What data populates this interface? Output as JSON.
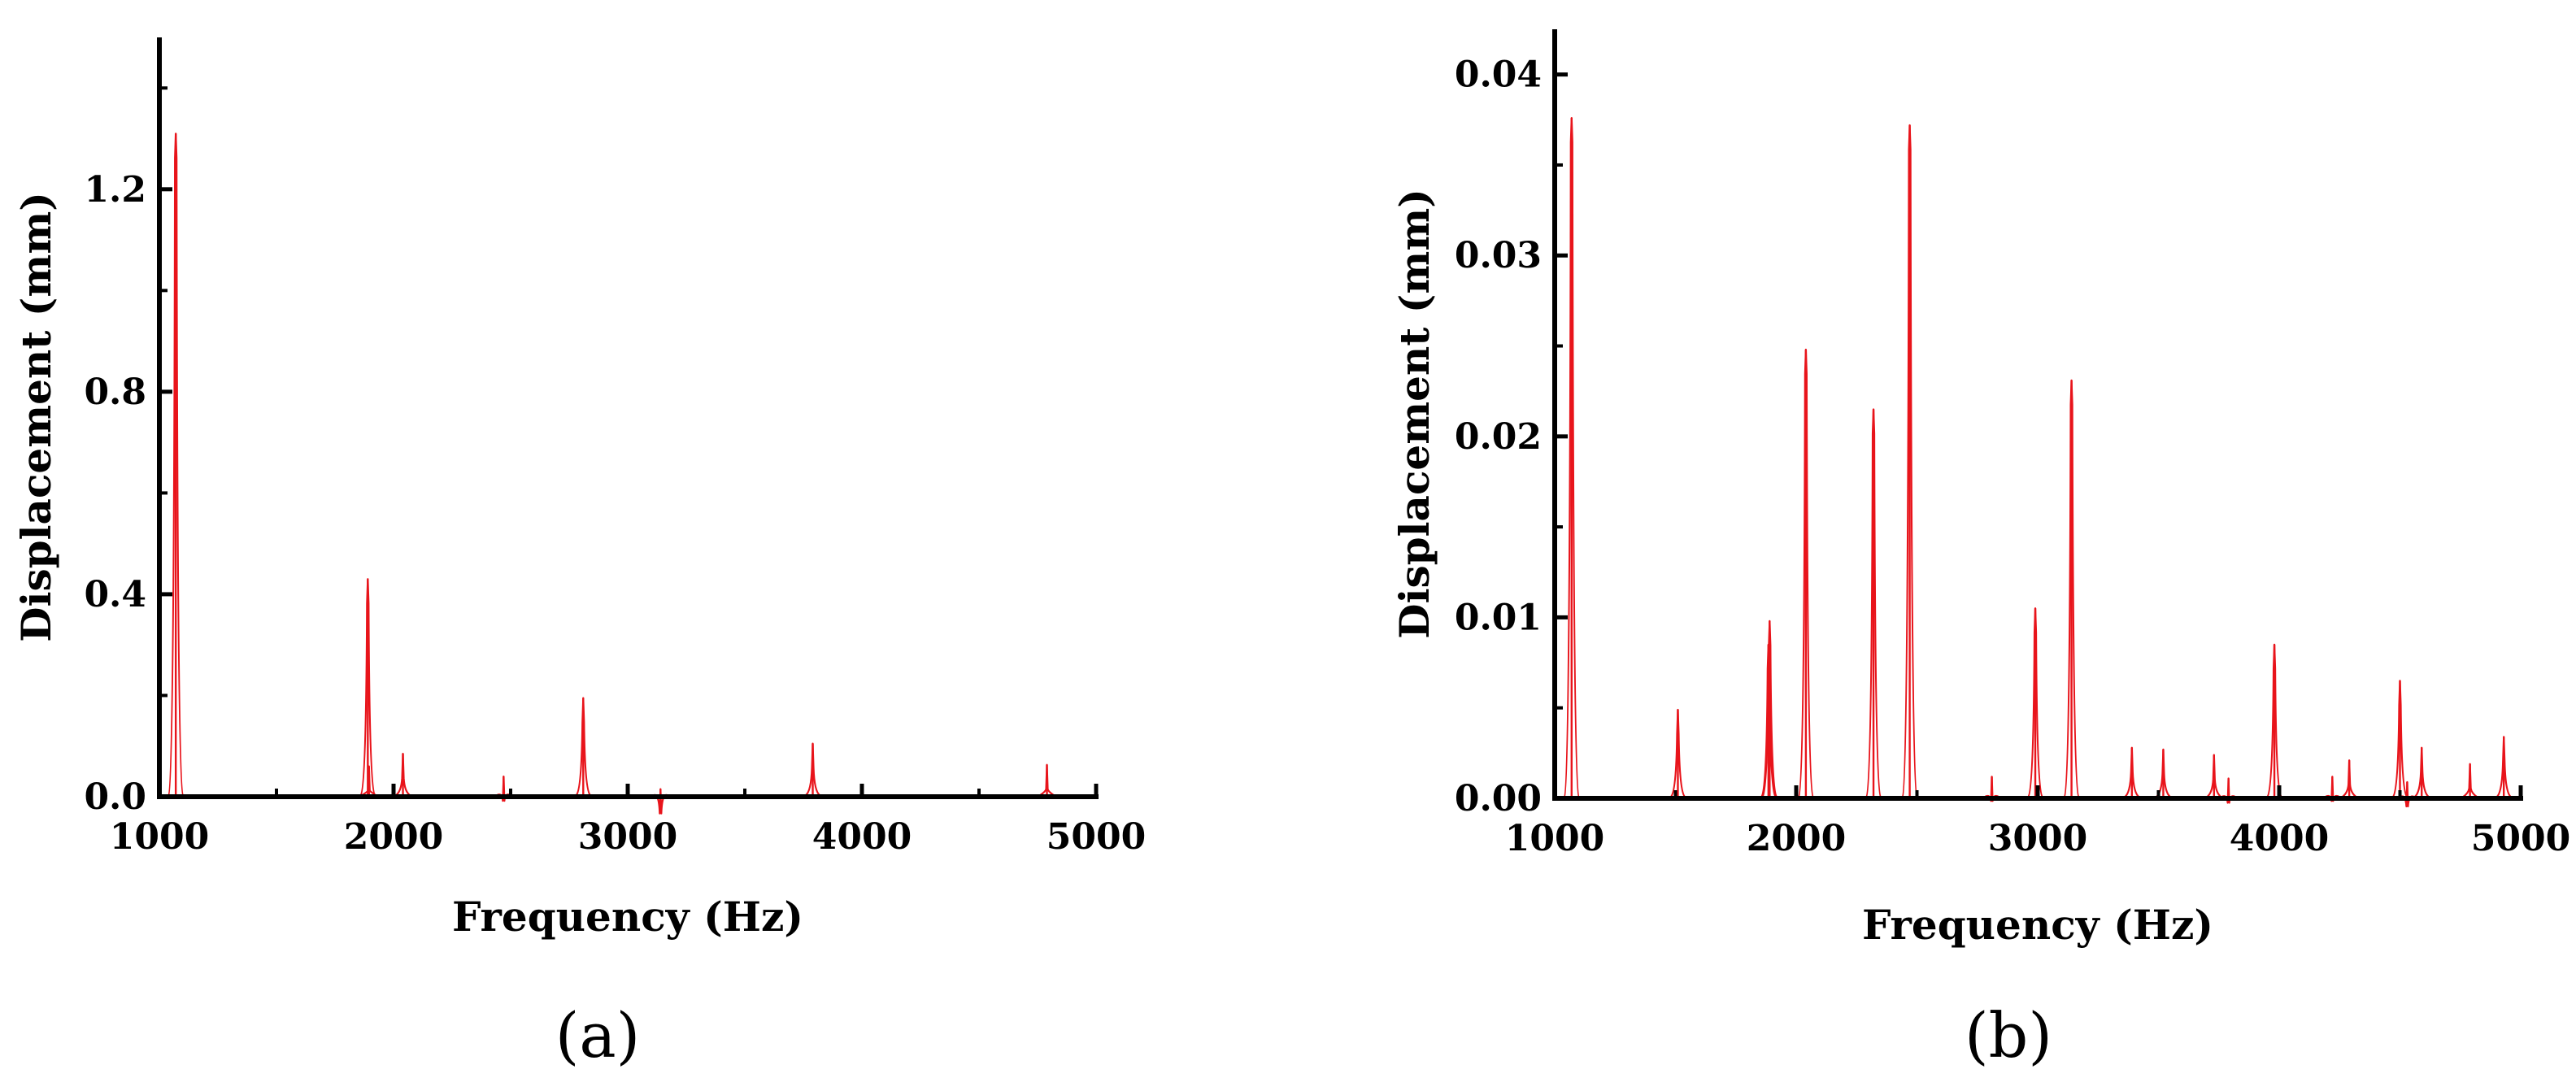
{
  "colors": {
    "series": "#e8141b",
    "axis": "#000000"
  },
  "chart_data": [
    {
      "type": "line",
      "panel_label": "(a)",
      "xlabel": "Frequency (Hz)",
      "ylabel": "Displacement (mm)",
      "xlim": [
        1000,
        5000
      ],
      "ylim": [
        0,
        1.5
      ],
      "xticks": [
        1000,
        2000,
        3000,
        4000,
        5000
      ],
      "xtick_labels": [
        "1000",
        "2000",
        "3000",
        "4000",
        "5000"
      ],
      "yticks": [
        0,
        0.4,
        0.8,
        1.2
      ],
      "ytick_labels": [
        "0.0",
        "0.4",
        "0.8",
        "1.2"
      ],
      "grid": false,
      "peaks": [
        {
          "x": 1070,
          "y": 1.31
        },
        {
          "x": 1890,
          "y": 0.43
        },
        {
          "x": 1895,
          "y": 0.06
        },
        {
          "x": 2040,
          "y": 0.085
        },
        {
          "x": 2470,
          "y": 0.04
        },
        {
          "x": 2810,
          "y": 0.195
        },
        {
          "x": 3140,
          "y": 0.015
        },
        {
          "x": 3790,
          "y": 0.105
        },
        {
          "x": 4790,
          "y": 0.063
        }
      ]
    },
    {
      "type": "line",
      "panel_label": "(b)",
      "xlabel": "Frequency (Hz)",
      "ylabel": "Displacement (mm)",
      "xlim": [
        1000,
        5000
      ],
      "ylim": [
        0,
        0.0425
      ],
      "xticks": [
        1000,
        2000,
        3000,
        4000,
        5000
      ],
      "xtick_labels": [
        "1000",
        "2000",
        "3000",
        "4000",
        "5000"
      ],
      "yticks": [
        0,
        0.01,
        0.02,
        0.03,
        0.04
      ],
      "ytick_labels": [
        "0.00",
        "0.01",
        "0.02",
        "0.03",
        "0.04"
      ],
      "grid": false,
      "peaks": [
        {
          "x": 1070,
          "y": 0.0376
        },
        {
          "x": 1510,
          "y": 0.0049
        },
        {
          "x": 1885,
          "y": 0.0085
        },
        {
          "x": 1890,
          "y": 0.0098
        },
        {
          "x": 2040,
          "y": 0.0248
        },
        {
          "x": 2320,
          "y": 0.0215
        },
        {
          "x": 2470,
          "y": 0.0372
        },
        {
          "x": 2810,
          "y": 0.0012
        },
        {
          "x": 2990,
          "y": 0.0105
        },
        {
          "x": 3140,
          "y": 0.0231
        },
        {
          "x": 3390,
          "y": 0.0028
        },
        {
          "x": 3520,
          "y": 0.0027
        },
        {
          "x": 3730,
          "y": 0.0024
        },
        {
          "x": 3790,
          "y": 0.0011
        },
        {
          "x": 3980,
          "y": 0.0085
        },
        {
          "x": 4220,
          "y": 0.0012
        },
        {
          "x": 4290,
          "y": 0.0021
        },
        {
          "x": 4500,
          "y": 0.0065
        },
        {
          "x": 4530,
          "y": 0.0009
        },
        {
          "x": 4590,
          "y": 0.0028
        },
        {
          "x": 4790,
          "y": 0.0019
        },
        {
          "x": 4930,
          "y": 0.0034
        }
      ]
    }
  ]
}
